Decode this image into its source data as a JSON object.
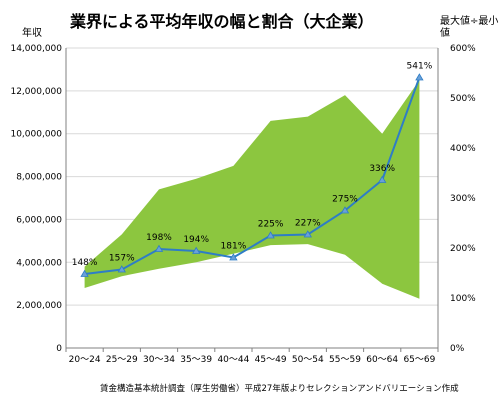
{
  "chart_data": {
    "type": "area",
    "title": "業界による平均年収の幅と割合（大企業）",
    "ylabel": "年収",
    "y2label": "最大値÷最小値",
    "source": "賃金構造基本統計調査（厚生労働省）平成27年版よりセレクションアンドバリエーション作成",
    "categories": [
      "20～24",
      "25～29",
      "30～34",
      "35～39",
      "40～44",
      "45～49",
      "50～54",
      "55～59",
      "60～64",
      "65～69"
    ],
    "ylim": [
      0,
      14000000
    ],
    "y2lim": [
      0,
      600
    ],
    "y_ticks": [
      "0",
      "2,000,000",
      "4,000,000",
      "6,000,000",
      "8,000,000",
      "10,000,000",
      "12,000,000",
      "14,000,000"
    ],
    "y2_ticks": [
      "0%",
      "100%",
      "200%",
      "300%",
      "400%",
      "500%",
      "600%"
    ],
    "series": [
      {
        "type": "area-range",
        "max": [
          3800000,
          5300000,
          7400000,
          7900000,
          8500000,
          10600000,
          10800000,
          11800000,
          10000000,
          12500000
        ],
        "min": [
          2800000,
          3350000,
          3700000,
          4000000,
          4400000,
          4800000,
          4850000,
          4350000,
          3000000,
          2300000
        ]
      },
      {
        "type": "line",
        "axis": "right",
        "values": [
          148,
          157,
          198,
          194,
          181,
          225,
          227,
          275,
          336,
          541
        ],
        "labels": [
          "148%",
          "157%",
          "198%",
          "194%",
          "181%",
          "225%",
          "227%",
          "275%",
          "336%",
          "541%"
        ]
      }
    ],
    "colors": {
      "area": "#8cc63f",
      "line": "#2e7dc6",
      "marker": "#6aa0d8"
    }
  }
}
